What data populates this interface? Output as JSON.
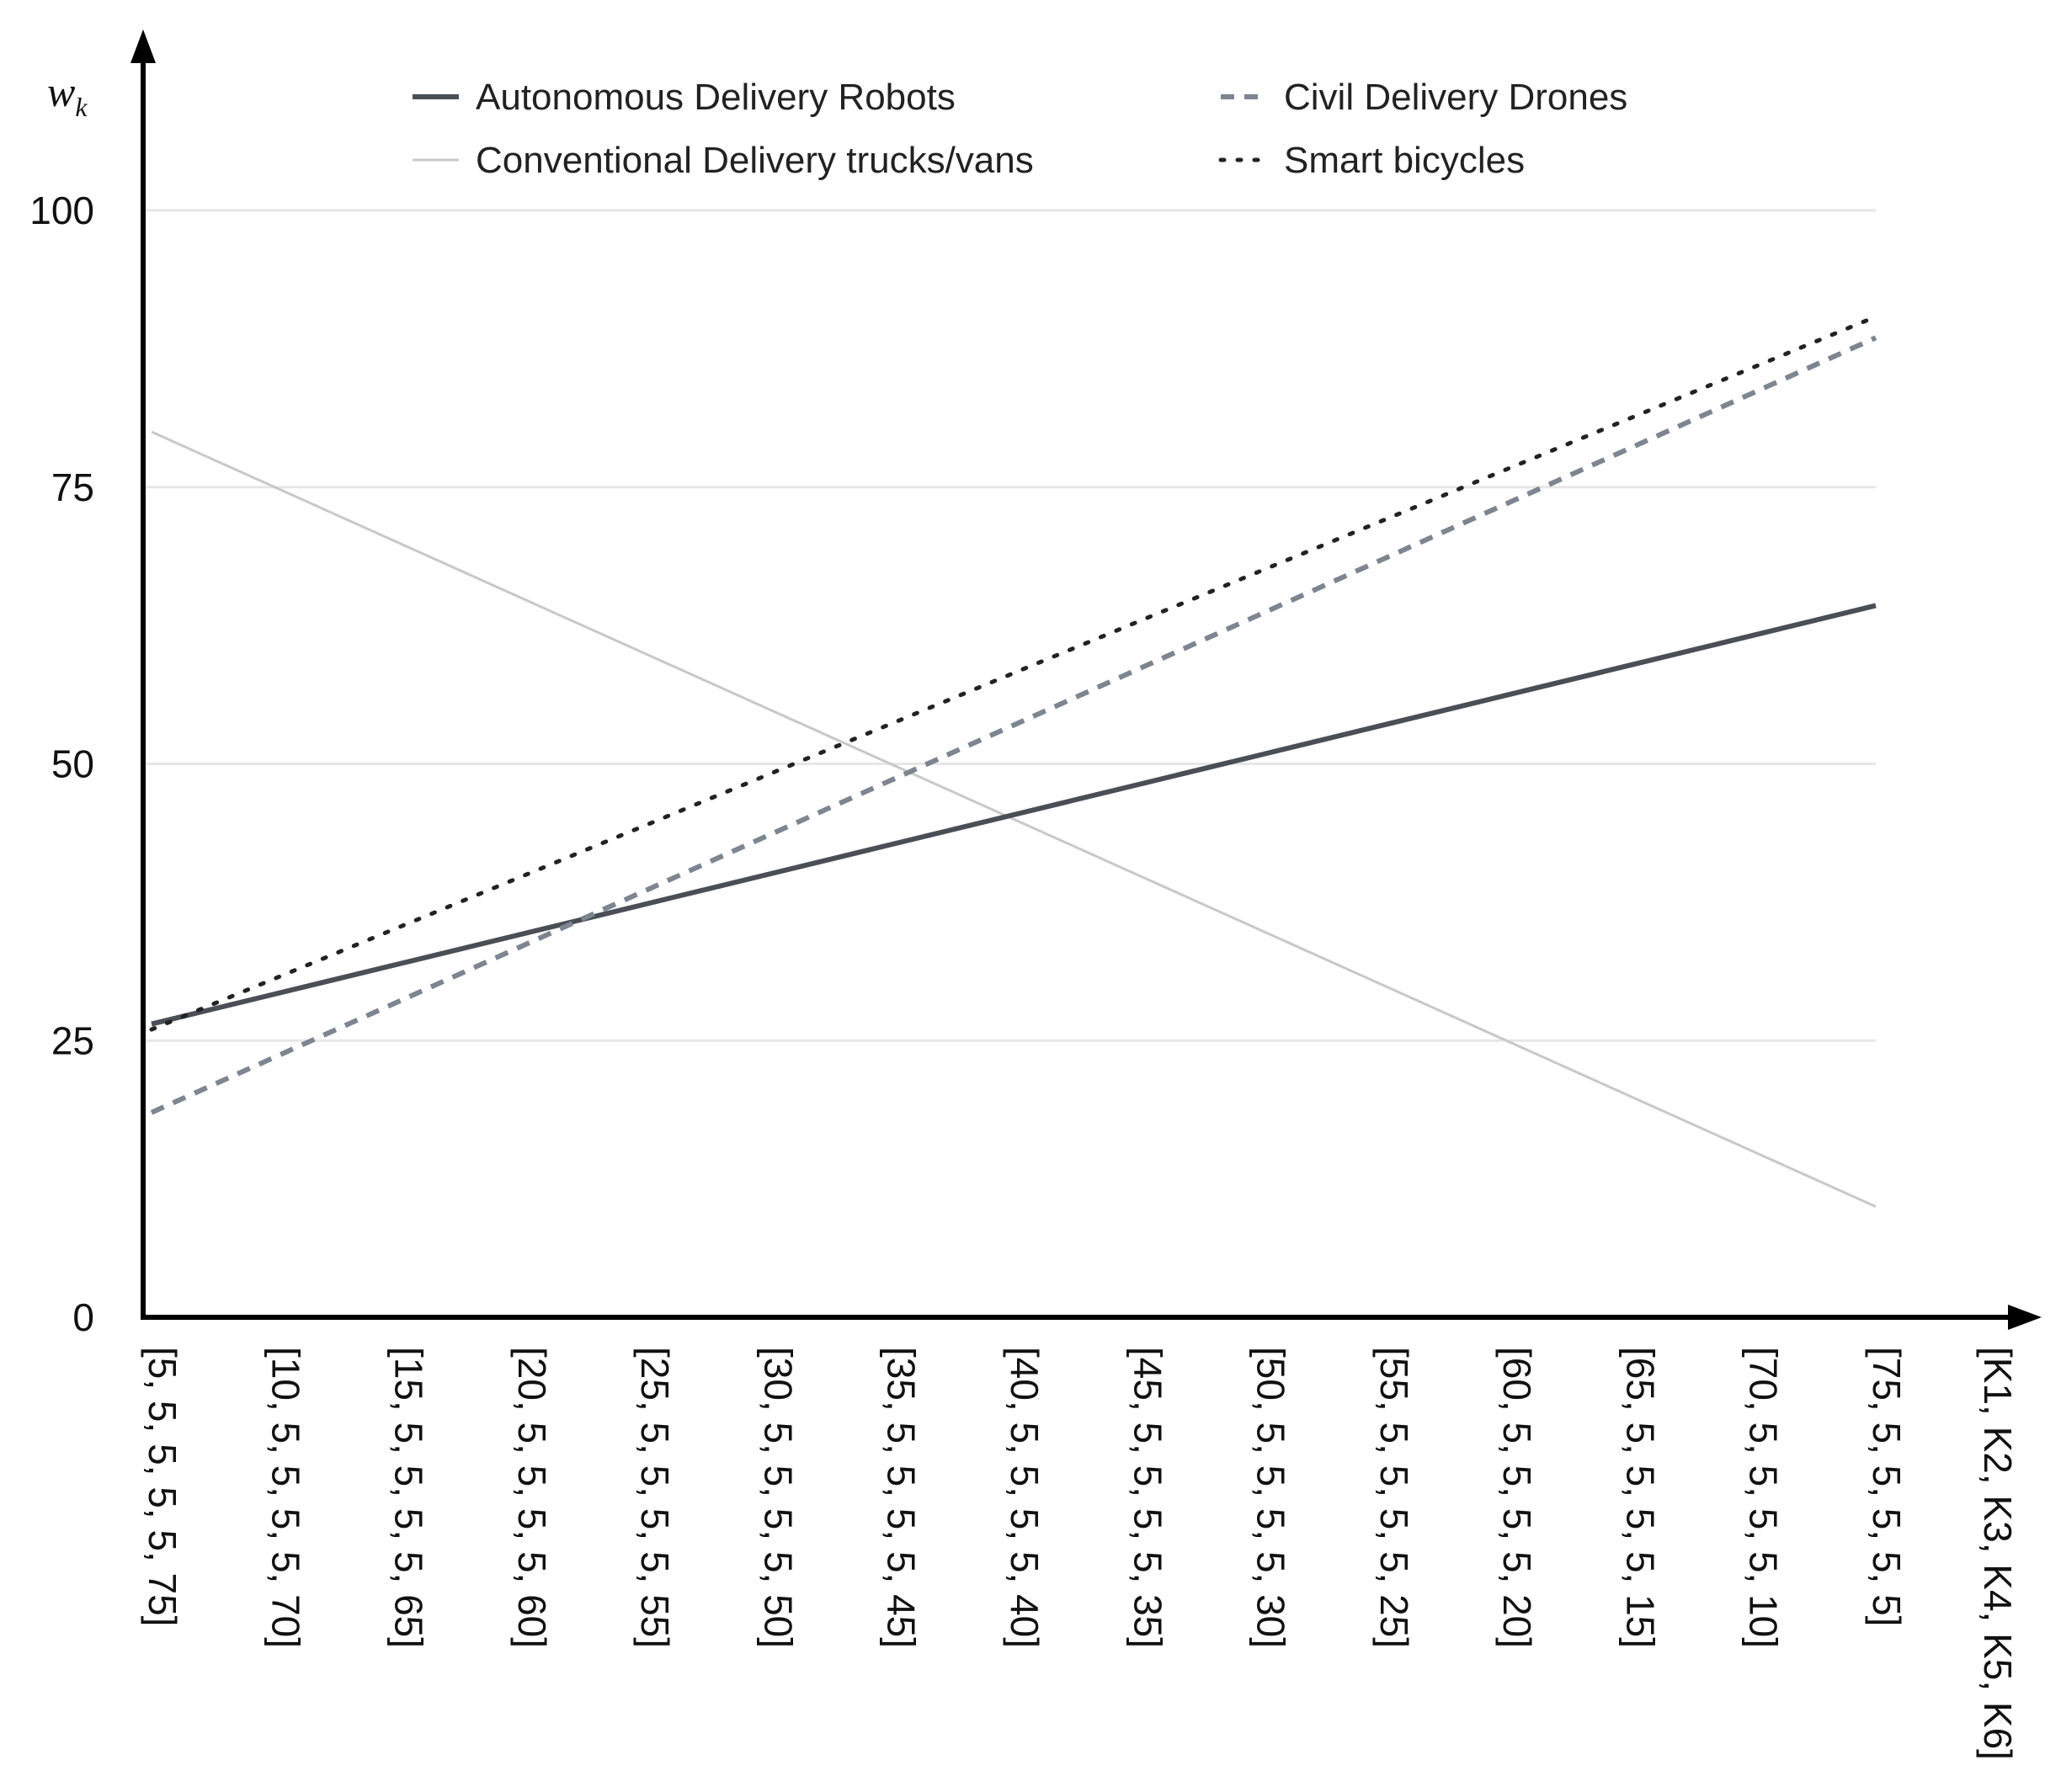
{
  "chart_data": {
    "type": "line",
    "ylabel": "w",
    "ylabel_subscript": "k",
    "xlabel": "[K1, K2, K3, K4, K5, K6]",
    "ylim": [
      0,
      100
    ],
    "yticks": [
      0,
      25,
      50,
      75,
      100
    ],
    "grid": "horizontal",
    "legend_position": "top",
    "x": [
      "[5, 5, 5, 5, 5, 75]",
      "[10, 5, 5, 5, 5, 70]",
      "[15, 5, 5, 5, 5, 65]",
      "[20, 5, 5, 5, 5, 60]",
      "[25, 5, 5, 5, 5, 55]",
      "[30, 5, 5, 5, 5, 50]",
      "[35, 5, 5, 5, 5, 45]",
      "[40, 5, 5, 5, 5, 40]",
      "[45, 5, 5, 5, 5, 35]",
      "[50, 5, 5, 5, 5, 30]",
      "[55, 5, 5, 5, 5, 25]",
      "[60, 5, 5, 5, 5, 20]",
      "[65, 5, 5, 5, 5, 15]",
      "[70, 5, 5, 5, 5, 10]",
      "[75, 5, 5, 5, 5, 5]"
    ],
    "series": [
      {
        "name": "Autonomous Delivery Robots",
        "color": "#4a4f57",
        "style": "solid",
        "values": [
          26.5,
          29.2,
          31.9,
          34.6,
          37.3,
          40.0,
          42.7,
          45.4,
          48.1,
          50.8,
          53.5,
          56.2,
          58.9,
          61.6,
          64.3
        ]
      },
      {
        "name": "Civil Delivery Drones",
        "color": "#7d8590",
        "style": "dashed",
        "values": [
          18.5,
          23.5,
          28.5,
          33.5,
          38.5,
          43.5,
          48.5,
          53.5,
          58.5,
          63.5,
          68.5,
          73.5,
          78.5,
          83.5,
          88.5
        ]
      },
      {
        "name": "Conventional Delivery trucks/vans",
        "color": "#c8c8c8",
        "style": "solid-thin",
        "values": [
          80,
          75,
          70,
          65,
          60,
          55,
          50,
          45,
          40,
          35,
          30,
          25,
          20,
          15,
          10
        ]
      },
      {
        "name": "Smart bicycles",
        "color": "#222222",
        "style": "dotted",
        "values": [
          26,
          30.6,
          35.2,
          39.8,
          44.4,
          49.0,
          53.6,
          58.2,
          62.8,
          67.4,
          72.0,
          76.6,
          81.2,
          85.8,
          90.4
        ]
      }
    ]
  }
}
